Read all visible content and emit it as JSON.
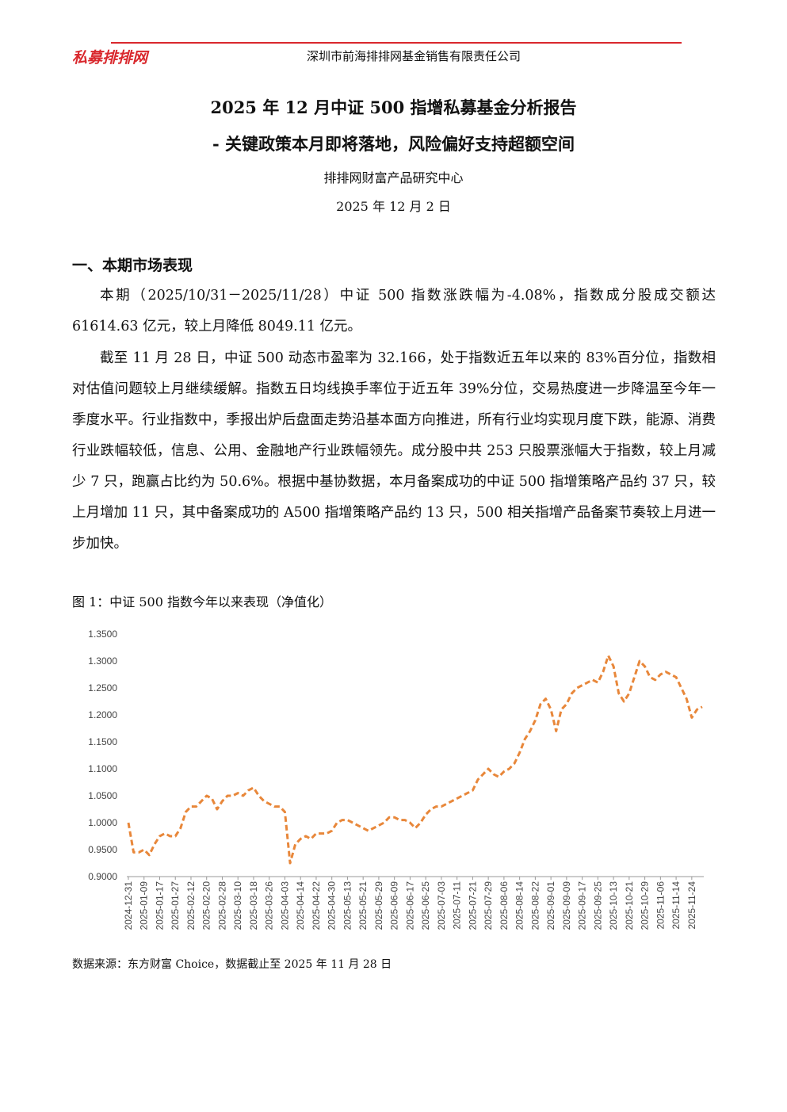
{
  "header": {
    "logo": "私募排排网",
    "company": "深圳市前海排排网基金销售有限责任公司"
  },
  "title": {
    "line1": "2025 年 12 月中证 500 指增私募基金分析报告",
    "line2": "-  关键政策本月即将落地，风险偏好支持超额空间"
  },
  "author": "排排网财富产品研究中心",
  "date": "2025 年 12 月 2 日",
  "section": {
    "heading": "一、本期市场表现",
    "paragraphs": [
      "本期（2025/10/31－2025/11/28）中证 500 指数涨跌幅为-4.08%，指数成分股成交额达 61614.63 亿元，较上月降低 8049.11 亿元。",
      "截至 11 月 28 日，中证 500 动态市盈率为 32.166，处于指数近五年以来的 83%百分位，指数相对估值问题较上月继续缓解。指数五日均线换手率位于近五年 39%分位，交易热度进一步降温至今年一季度水平。行业指数中，季报出炉后盘面走势沿基本面方向推进，所有行业均实现月度下跌，能源、消费行业跌幅较低，信息、公用、金融地产行业跌幅领先。成分股中共 253 只股票涨幅大于指数，较上月减少 7 只，跑赢占比约为 50.6%。根据中基协数据，本月备案成功的中证 500 指增策略产品约 37 只，较上月增加 11 只，其中备案成功的 A500 指增策略产品约 13 只，500 相关指增产品备案节奏较上月进一步加快。"
    ]
  },
  "figure_caption": "图 1：中证 500 指数今年以来表现（净值化）",
  "chart_data": {
    "type": "line",
    "color": "#e8873a",
    "line_style": "dashed",
    "categories": [
      "2024-12-31",
      null,
      null,
      "2025-01-09",
      null,
      null,
      "2025-01-17",
      null,
      null,
      "2025-01-27",
      null,
      null,
      "2025-02-12",
      null,
      null,
      "2025-02-20",
      null,
      null,
      "2025-02-28",
      null,
      null,
      "2025-03-10",
      null,
      null,
      "2025-03-18",
      null,
      null,
      "2025-03-26",
      null,
      null,
      "2025-04-03",
      null,
      null,
      "2025-04-14",
      null,
      null,
      "2025-04-22",
      null,
      null,
      "2025-04-30",
      null,
      null,
      "2025-05-13",
      null,
      null,
      "2025-05-21",
      null,
      null,
      "2025-05-29",
      null,
      null,
      "2025-06-09",
      null,
      null,
      "2025-06-17",
      null,
      null,
      "2025-06-25",
      null,
      null,
      "2025-07-03",
      null,
      null,
      "2025-07-11",
      null,
      null,
      "2025-07-21",
      null,
      null,
      "2025-07-29",
      null,
      null,
      "2025-08-06",
      null,
      null,
      "2025-08-14",
      null,
      null,
      "2025-08-22",
      null,
      null,
      "2025-09-01",
      null,
      null,
      "2025-09-09",
      null,
      null,
      "2025-09-17",
      null,
      null,
      "2025-09-25",
      null,
      null,
      "2025-10-13",
      null,
      null,
      "2025-10-21",
      null,
      null,
      "2025-10-29",
      null,
      null,
      "2025-11-06",
      null,
      null,
      "2025-11-14",
      null,
      null,
      "2025-11-24",
      null,
      null
    ],
    "values": [
      1.0,
      0.945,
      0.945,
      0.95,
      0.94,
      0.96,
      0.975,
      0.98,
      0.975,
      0.975,
      0.99,
      1.02,
      1.03,
      1.03,
      1.04,
      1.05,
      1.045,
      1.025,
      1.04,
      1.05,
      1.05,
      1.055,
      1.05,
      1.06,
      1.065,
      1.05,
      1.04,
      1.035,
      1.03,
      1.03,
      1.02,
      0.925,
      0.96,
      0.97,
      0.975,
      0.97,
      0.98,
      0.98,
      0.98,
      0.985,
      1.0,
      1.005,
      1.005,
      1.0,
      0.995,
      0.99,
      0.985,
      0.99,
      0.995,
      1.0,
      1.01,
      1.01,
      1.005,
      1.005,
      1.0,
      0.99,
      1.0,
      1.015,
      1.025,
      1.03,
      1.03,
      1.035,
      1.04,
      1.045,
      1.05,
      1.055,
      1.06,
      1.08,
      1.09,
      1.1,
      1.09,
      1.085,
      1.095,
      1.1,
      1.11,
      1.13,
      1.155,
      1.17,
      1.19,
      1.22,
      1.23,
      1.21,
      1.17,
      1.21,
      1.22,
      1.24,
      1.25,
      1.255,
      1.26,
      1.265,
      1.26,
      1.28,
      1.31,
      1.29,
      1.24,
      1.225,
      1.24,
      1.27,
      1.3,
      1.29,
      1.27,
      1.265,
      1.275,
      1.28,
      1.275,
      1.27,
      1.25,
      1.23,
      1.195,
      1.21,
      1.215
    ],
    "ylim": [
      0.9,
      1.35
    ],
    "yticks": [
      {
        "value": 0.9,
        "label": "0.9000"
      },
      {
        "value": 0.95,
        "label": "0.9500"
      },
      {
        "value": 1.0,
        "label": "1.0000"
      },
      {
        "value": 1.05,
        "label": "1.0500"
      },
      {
        "value": 1.1,
        "label": "1.1000"
      },
      {
        "value": 1.15,
        "label": "1.1500"
      },
      {
        "value": 1.2,
        "label": "1.2000"
      },
      {
        "value": 1.25,
        "label": "1.2500"
      },
      {
        "value": 1.3,
        "label": "1.3000"
      },
      {
        "value": 1.35,
        "label": "1.3500"
      }
    ],
    "grid": false
  },
  "source": "数据来源：东方财富 Choice，数据截止至 2025 年 11 月 28 日"
}
